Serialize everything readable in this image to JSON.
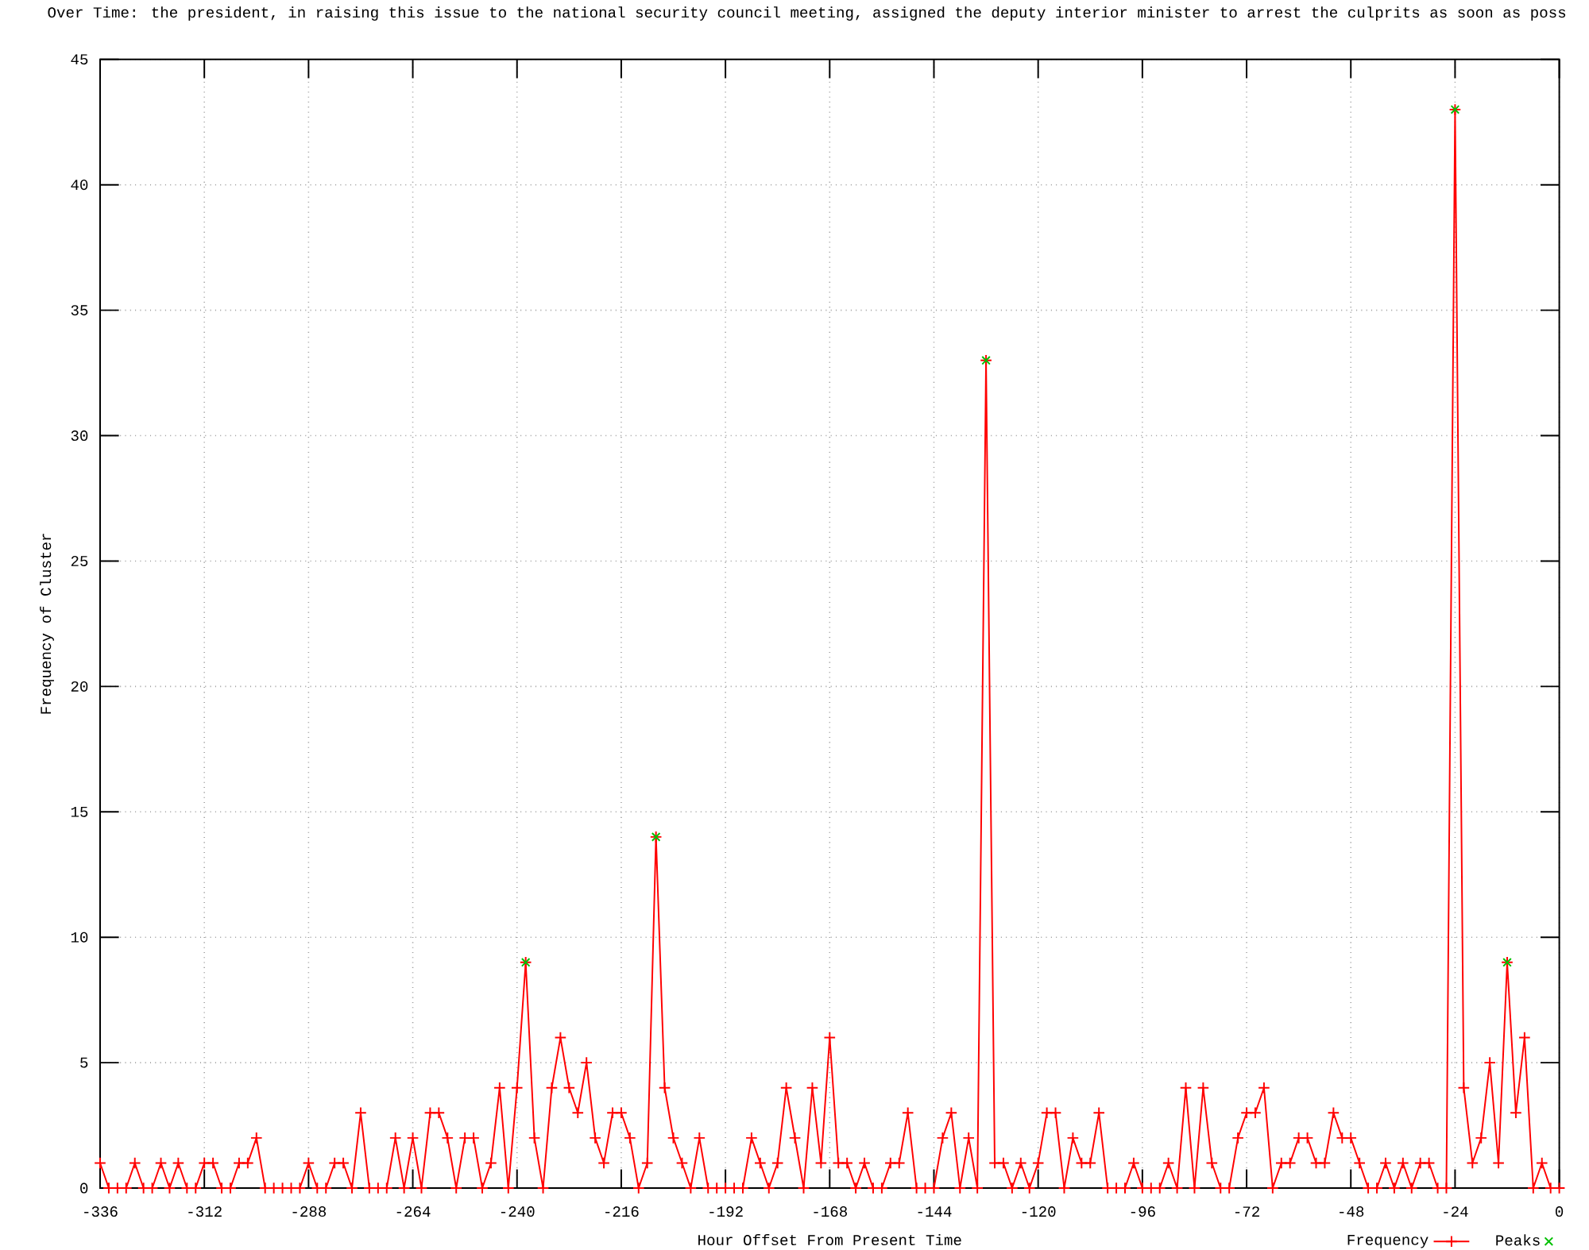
{
  "chart_data": {
    "type": "line",
    "title": "Over Time: the president, in raising this issue to the national security council meeting, assigned the deputy interior minister to arrest the culprits as soon as poss",
    "xlabel": "Hour Offset From Present Time",
    "ylabel": "Frequency of Cluster",
    "x": [
      -336,
      -334,
      -332,
      -330,
      -328,
      -326,
      -324,
      -322,
      -320,
      -318,
      -316,
      -314,
      -312,
      -310,
      -308,
      -306,
      -304,
      -302,
      -300,
      -298,
      -296,
      -294,
      -292,
      -290,
      -288,
      -286,
      -284,
      -282,
      -280,
      -278,
      -276,
      -274,
      -272,
      -270,
      -268,
      -266,
      -264,
      -262,
      -260,
      -258,
      -256,
      -254,
      -252,
      -250,
      -248,
      -246,
      -244,
      -242,
      -240,
      -238,
      -236,
      -234,
      -232,
      -230,
      -228,
      -226,
      -224,
      -222,
      -220,
      -218,
      -216,
      -214,
      -212,
      -210,
      -208,
      -206,
      -204,
      -202,
      -200,
      -198,
      -196,
      -194,
      -192,
      -190,
      -188,
      -186,
      -184,
      -182,
      -180,
      -178,
      -176,
      -174,
      -172,
      -170,
      -168,
      -166,
      -164,
      -162,
      -160,
      -158,
      -156,
      -154,
      -152,
      -150,
      -148,
      -146,
      -144,
      -142,
      -140,
      -138,
      -136,
      -134,
      -132,
      -130,
      -128,
      -126,
      -124,
      -122,
      -120,
      -118,
      -116,
      -114,
      -112,
      -110,
      -108,
      -106,
      -104,
      -102,
      -100,
      -98,
      -96,
      -94,
      -92,
      -90,
      -88,
      -86,
      -84,
      -82,
      -80,
      -78,
      -76,
      -74,
      -72,
      -70,
      -68,
      -66,
      -64,
      -62,
      -60,
      -58,
      -56,
      -54,
      -52,
      -50,
      -48,
      -46,
      -44,
      -42,
      -40,
      -38,
      -36,
      -34,
      -32,
      -30,
      -28,
      -26,
      -24,
      -22,
      -20,
      -18,
      -16,
      -14,
      -12,
      -10,
      -8,
      -6,
      -4,
      -2,
      0
    ],
    "series": [
      {
        "name": "Frequency",
        "color": "#ff0000",
        "values": [
          1,
          0,
          0,
          0,
          1,
          0,
          0,
          1,
          0,
          1,
          0,
          0,
          1,
          1,
          0,
          0,
          1,
          1,
          2,
          0,
          0,
          0,
          0,
          0,
          1,
          0,
          0,
          1,
          1,
          0,
          3,
          0,
          0,
          0,
          2,
          0,
          2,
          0,
          3,
          3,
          2,
          0,
          2,
          2,
          0,
          1,
          4,
          0,
          4,
          9,
          2,
          0,
          4,
          6,
          4,
          3,
          5,
          2,
          1,
          3,
          3,
          2,
          0,
          1,
          14,
          4,
          2,
          1,
          0,
          2,
          0,
          0,
          0,
          0,
          0,
          2,
          1,
          0,
          1,
          4,
          2,
          0,
          4,
          1,
          6,
          1,
          1,
          0,
          1,
          0,
          0,
          1,
          1,
          3,
          0,
          0,
          0,
          2,
          3,
          0,
          2,
          0,
          33,
          1,
          1,
          0,
          1,
          0,
          1,
          3,
          3,
          0,
          2,
          1,
          1,
          3,
          0,
          0,
          0,
          1,
          0,
          0,
          0,
          1,
          0,
          4,
          0,
          4,
          1,
          0,
          0,
          2,
          3,
          3,
          4,
          0,
          1,
          1,
          2,
          2,
          1,
          1,
          3,
          2,
          2,
          1,
          0,
          0,
          1,
          0,
          1,
          0,
          1,
          1,
          0,
          0,
          43,
          4,
          1,
          2,
          5,
          1,
          9,
          3,
          6,
          0,
          1,
          0,
          0
        ]
      },
      {
        "name": "Peaks",
        "color": "#00c000",
        "type": "scatter",
        "x": [
          -238,
          -208,
          -132,
          -24,
          -12
        ],
        "values": [
          9,
          14,
          33,
          43,
          9
        ]
      }
    ],
    "xlim": [
      -336,
      0
    ],
    "ylim": [
      0,
      45
    ],
    "xticks": [
      -336,
      -312,
      -288,
      -264,
      -240,
      -216,
      -192,
      -168,
      -144,
      -120,
      -96,
      -72,
      -48,
      -24,
      0
    ],
    "yticks": [
      0,
      5,
      10,
      15,
      20,
      25,
      30,
      35,
      40,
      45
    ],
    "grid": true,
    "legend": "bottom right",
    "marker": "cross"
  }
}
